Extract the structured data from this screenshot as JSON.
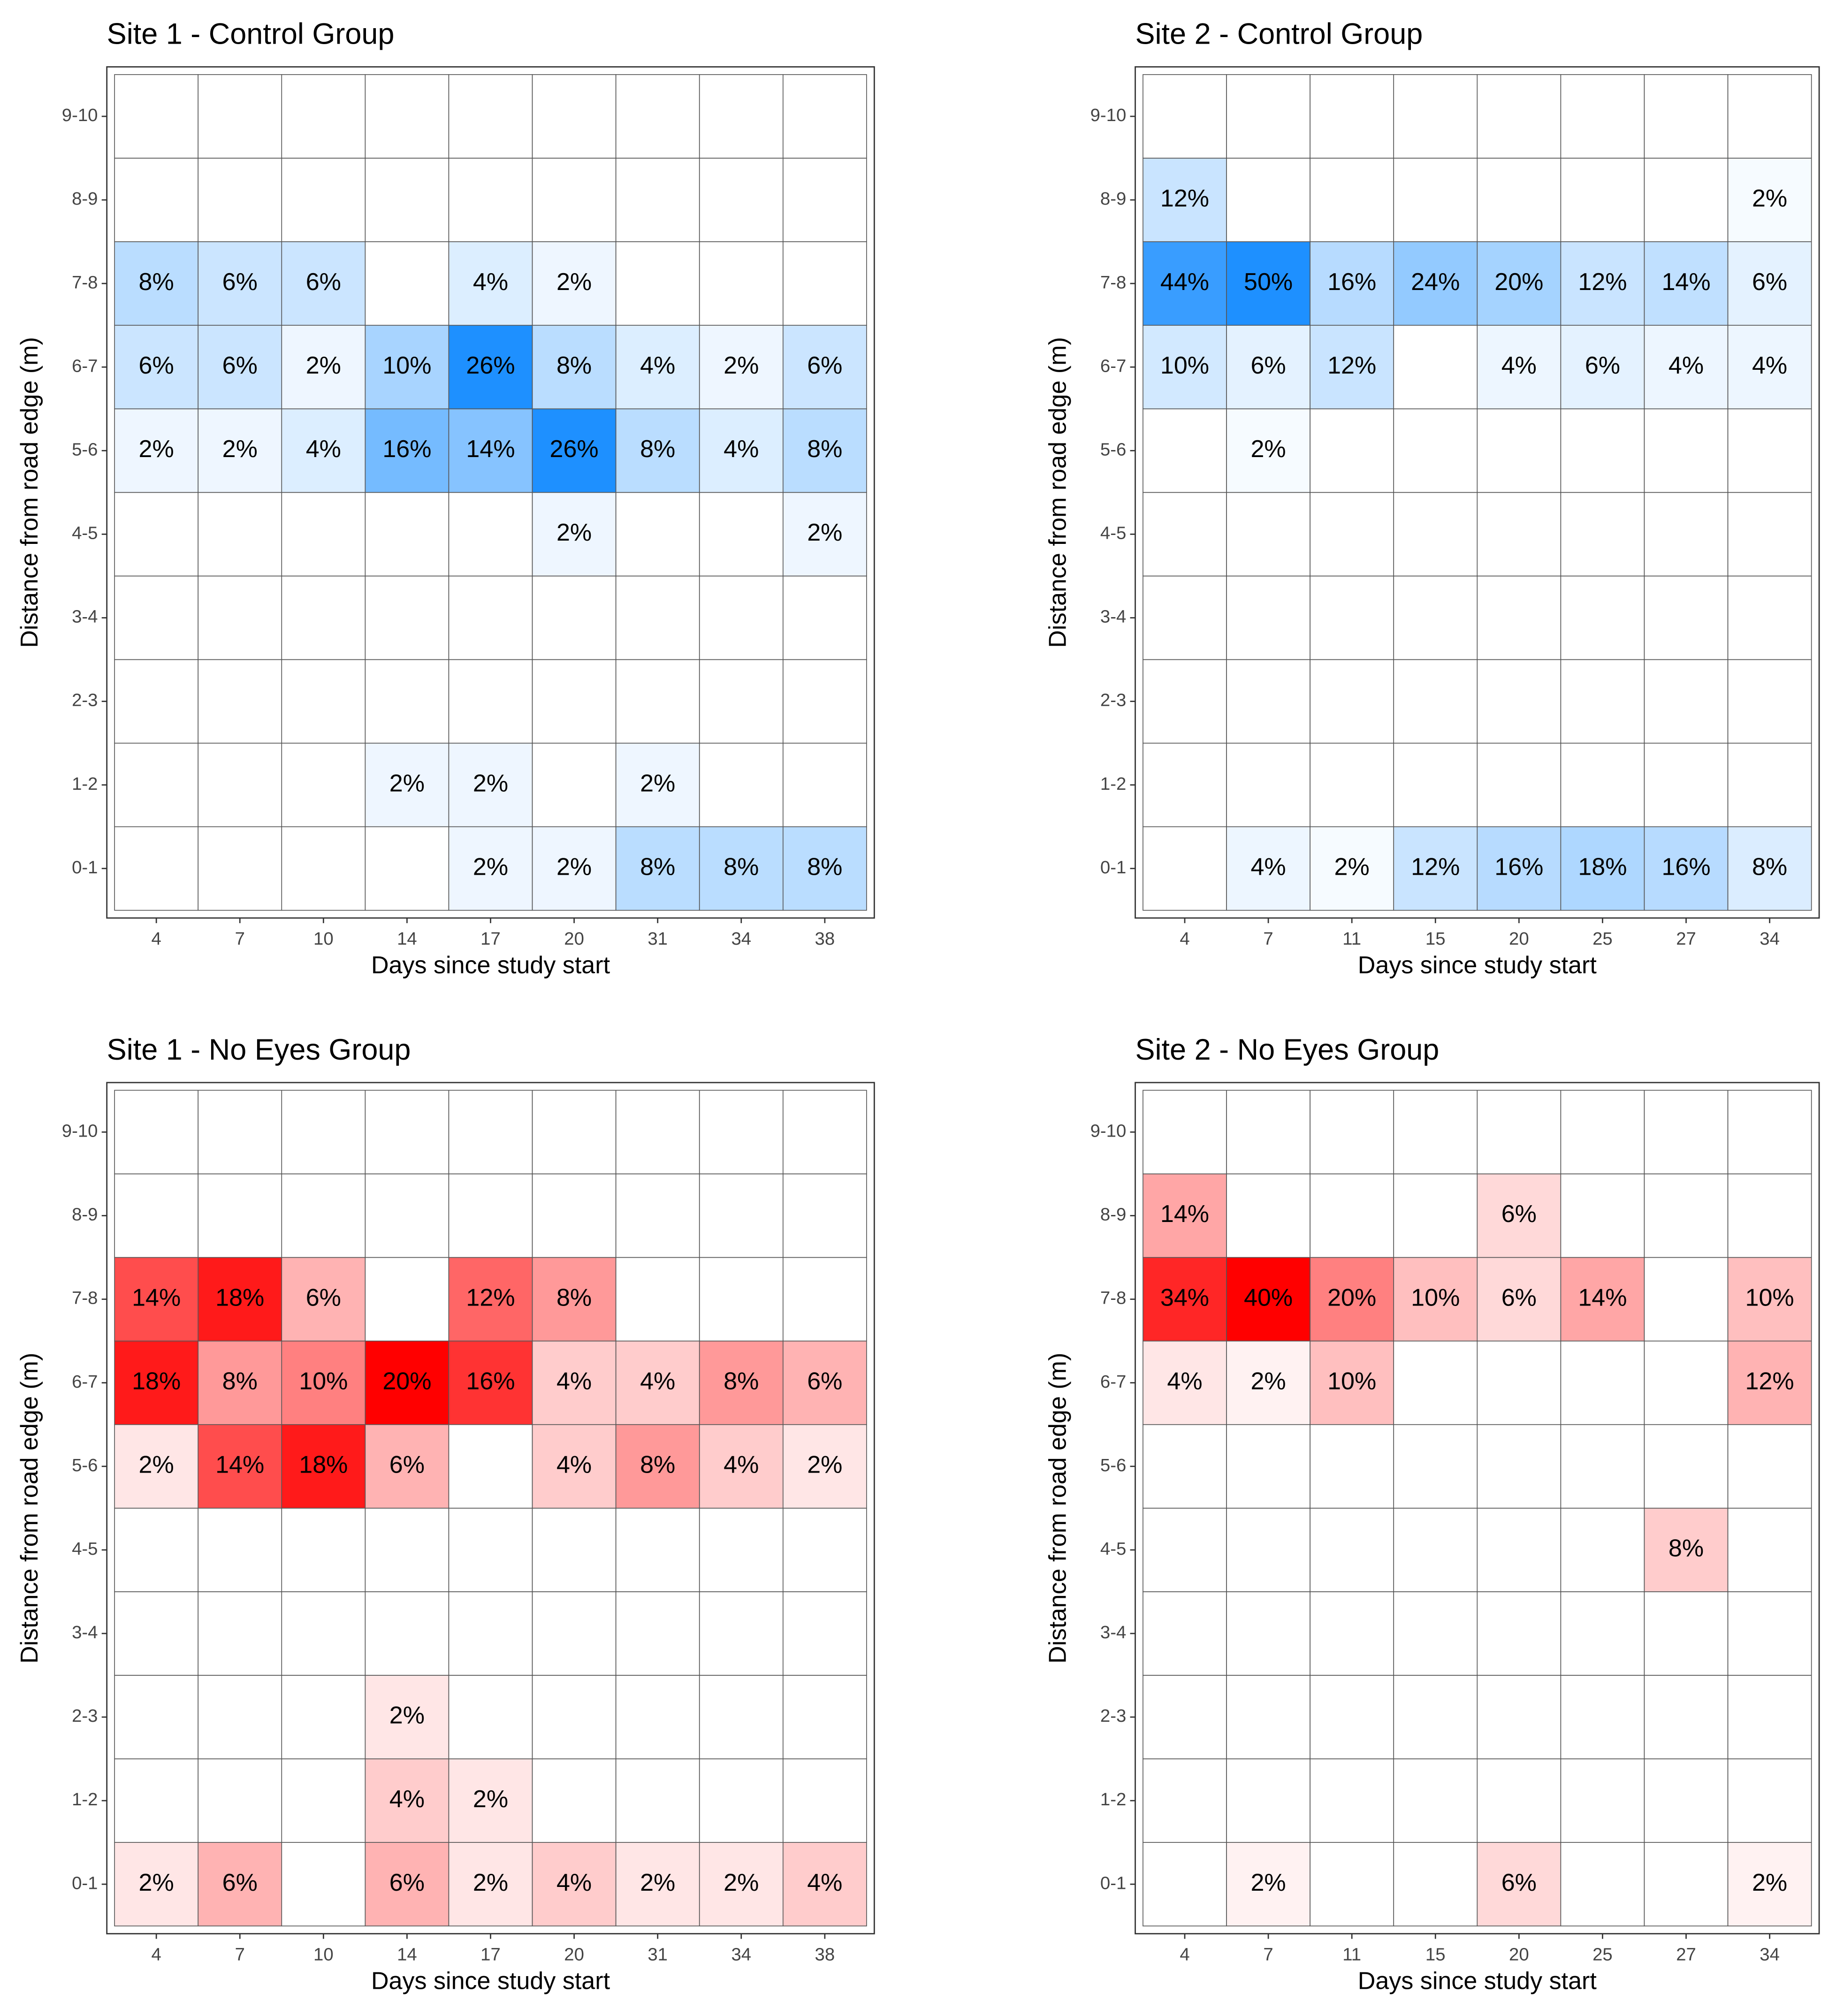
{
  "chart_data": [
    {
      "type": "heatmap",
      "title": "Site 1 - Control Group",
      "x_label": "Days since study start",
      "y_label": "Distance from road edge (m)",
      "color": "#1e90ff",
      "x": [
        "4",
        "7",
        "10",
        "14",
        "17",
        "20",
        "31",
        "34",
        "38"
      ],
      "y": [
        "0-1",
        "1-2",
        "2-3",
        "3-4",
        "4-5",
        "5-6",
        "6-7",
        "7-8",
        "8-9",
        "9-10"
      ],
      "values": [
        [
          null,
          null,
          null,
          null,
          2,
          2,
          8,
          8,
          8
        ],
        [
          null,
          null,
          null,
          2,
          2,
          null,
          2,
          null,
          null
        ],
        [
          null,
          null,
          null,
          null,
          null,
          null,
          null,
          null,
          null
        ],
        [
          null,
          null,
          null,
          null,
          null,
          null,
          null,
          null,
          null
        ],
        [
          null,
          null,
          null,
          null,
          null,
          2,
          null,
          null,
          2
        ],
        [
          2,
          2,
          4,
          16,
          14,
          26,
          8,
          4,
          8
        ],
        [
          6,
          6,
          2,
          10,
          26,
          8,
          4,
          2,
          6
        ],
        [
          8,
          6,
          6,
          null,
          4,
          2,
          null,
          null,
          null
        ],
        [
          null,
          null,
          null,
          null,
          null,
          null,
          null,
          null,
          null
        ],
        [
          null,
          null,
          null,
          null,
          null,
          null,
          null,
          null,
          null
        ]
      ],
      "value_labels": [
        [
          null,
          null,
          null,
          null,
          "2%",
          "2%",
          "8%",
          "8%",
          "8%"
        ],
        [
          null,
          null,
          null,
          "2%",
          "2%",
          null,
          "2%",
          null,
          null
        ],
        [
          null,
          null,
          null,
          null,
          null,
          null,
          null,
          null,
          null
        ],
        [
          null,
          null,
          null,
          null,
          null,
          null,
          null,
          null,
          null
        ],
        [
          null,
          null,
          null,
          null,
          null,
          "2%",
          null,
          null,
          "2%"
        ],
        [
          "2%",
          "2%",
          "4%",
          "16%",
          "14%",
          "26%",
          "8%",
          "4%",
          "8%"
        ],
        [
          "6%",
          "6%",
          "2%",
          "10%",
          "26%",
          "8%",
          "4%",
          "2%",
          "6%"
        ],
        [
          "8%",
          "6%",
          "6%",
          null,
          "4%",
          "2%",
          null,
          null,
          null
        ],
        [
          null,
          null,
          null,
          null,
          null,
          null,
          null,
          null,
          null
        ],
        [
          null,
          null,
          null,
          null,
          null,
          null,
          null,
          null,
          null
        ]
      ]
    },
    {
      "type": "heatmap",
      "title": "Site 2 - Control Group",
      "x_label": "Days since study start",
      "y_label": "Distance from road edge (m)",
      "color": "#1e90ff",
      "x": [
        "4",
        "7",
        "11",
        "15",
        "20",
        "25",
        "27",
        "34"
      ],
      "y": [
        "0-1",
        "1-2",
        "2-3",
        "3-4",
        "4-5",
        "5-6",
        "6-7",
        "7-8",
        "8-9",
        "9-10"
      ],
      "values": [
        [
          null,
          4,
          2,
          12,
          16,
          18,
          16,
          8
        ],
        [
          null,
          null,
          null,
          null,
          null,
          null,
          null,
          null
        ],
        [
          null,
          null,
          null,
          null,
          null,
          null,
          null,
          null
        ],
        [
          null,
          null,
          null,
          null,
          null,
          null,
          null,
          null
        ],
        [
          null,
          null,
          null,
          null,
          null,
          null,
          null,
          null
        ],
        [
          null,
          2,
          null,
          null,
          null,
          null,
          null,
          null
        ],
        [
          10,
          6,
          12,
          null,
          4,
          6,
          4,
          4
        ],
        [
          44,
          50,
          16,
          24,
          20,
          12,
          14,
          6
        ],
        [
          12,
          null,
          null,
          null,
          null,
          null,
          null,
          2
        ],
        [
          null,
          null,
          null,
          null,
          null,
          null,
          null,
          null
        ]
      ],
      "value_labels": [
        [
          null,
          "4%",
          "2%",
          "12%",
          "16%",
          "18%",
          "16%",
          "8%"
        ],
        [
          null,
          null,
          null,
          null,
          null,
          null,
          null,
          null
        ],
        [
          null,
          null,
          null,
          null,
          null,
          null,
          null,
          null
        ],
        [
          null,
          null,
          null,
          null,
          null,
          null,
          null,
          null
        ],
        [
          null,
          null,
          null,
          null,
          null,
          null,
          null,
          null
        ],
        [
          null,
          "2%",
          null,
          null,
          null,
          null,
          null,
          null
        ],
        [
          "10%",
          "6%",
          "12%",
          null,
          "4%",
          "6%",
          "4%",
          "4%"
        ],
        [
          "44%",
          "50%",
          "16%",
          "24%",
          "20%",
          "12%",
          "14%",
          "6%"
        ],
        [
          "12%",
          null,
          null,
          null,
          null,
          null,
          null,
          "2%"
        ],
        [
          null,
          null,
          null,
          null,
          null,
          null,
          null,
          null
        ]
      ]
    },
    {
      "type": "heatmap",
      "title": "Site 1 - No Eyes Group",
      "x_label": "Days since study start",
      "y_label": "Distance from road edge (m)",
      "color": "#ff0000",
      "x": [
        "4",
        "7",
        "10",
        "14",
        "17",
        "20",
        "31",
        "34",
        "38"
      ],
      "y": [
        "0-1",
        "1-2",
        "2-3",
        "3-4",
        "4-5",
        "5-6",
        "6-7",
        "7-8",
        "8-9",
        "9-10"
      ],
      "values": [
        [
          2,
          6,
          null,
          6,
          2,
          4,
          2,
          2,
          4
        ],
        [
          null,
          null,
          null,
          4,
          2,
          null,
          null,
          null,
          null
        ],
        [
          null,
          null,
          null,
          2,
          null,
          null,
          null,
          null,
          null
        ],
        [
          null,
          null,
          null,
          null,
          null,
          null,
          null,
          null,
          null
        ],
        [
          null,
          null,
          null,
          null,
          null,
          null,
          null,
          null,
          null
        ],
        [
          2,
          14,
          18,
          6,
          null,
          4,
          8,
          4,
          2
        ],
        [
          18,
          8,
          10,
          20,
          16,
          4,
          4,
          8,
          6
        ],
        [
          14,
          18,
          6,
          null,
          12,
          8,
          null,
          null,
          null
        ],
        [
          null,
          null,
          null,
          null,
          null,
          null,
          null,
          null,
          null
        ],
        [
          null,
          null,
          null,
          null,
          null,
          null,
          null,
          null,
          null
        ]
      ],
      "value_labels": [
        [
          "2%",
          "6%",
          null,
          "6%",
          "2%",
          "4%",
          "2%",
          "2%",
          "4%"
        ],
        [
          null,
          null,
          null,
          "4%",
          "2%",
          null,
          null,
          null,
          null
        ],
        [
          null,
          null,
          null,
          "2%",
          null,
          null,
          null,
          null,
          null
        ],
        [
          null,
          null,
          null,
          null,
          null,
          null,
          null,
          null,
          null
        ],
        [
          null,
          null,
          null,
          null,
          null,
          null,
          null,
          null,
          null
        ],
        [
          "2%",
          "14%",
          "18%",
          "6%",
          null,
          "4%",
          "8%",
          "4%",
          "2%"
        ],
        [
          "18%",
          "8%",
          "10%",
          "20%",
          "16%",
          "4%",
          "4%",
          "8%",
          "6%"
        ],
        [
          "14%",
          "18%",
          "6%",
          null,
          "12%",
          "8%",
          null,
          null,
          null
        ],
        [
          null,
          null,
          null,
          null,
          null,
          null,
          null,
          null,
          null
        ],
        [
          null,
          null,
          null,
          null,
          null,
          null,
          null,
          null,
          null
        ]
      ]
    },
    {
      "type": "heatmap",
      "title": "Site 2 - No Eyes Group",
      "x_label": "Days since study start",
      "y_label": "Distance from road edge (m)",
      "color": "#ff0000",
      "x": [
        "4",
        "7",
        "11",
        "15",
        "20",
        "25",
        "27",
        "34"
      ],
      "y": [
        "0-1",
        "1-2",
        "2-3",
        "3-4",
        "4-5",
        "5-6",
        "6-7",
        "7-8",
        "8-9",
        "9-10"
      ],
      "values": [
        [
          null,
          2,
          null,
          null,
          6,
          null,
          null,
          2
        ],
        [
          null,
          null,
          null,
          null,
          null,
          null,
          null,
          null
        ],
        [
          null,
          null,
          null,
          null,
          null,
          null,
          null,
          null
        ],
        [
          null,
          null,
          null,
          null,
          null,
          null,
          null,
          null
        ],
        [
          null,
          null,
          null,
          null,
          null,
          null,
          8,
          null
        ],
        [
          null,
          null,
          null,
          null,
          null,
          null,
          null,
          null
        ],
        [
          4,
          2,
          10,
          null,
          null,
          null,
          null,
          12
        ],
        [
          34,
          40,
          20,
          10,
          6,
          14,
          null,
          10
        ],
        [
          14,
          null,
          null,
          null,
          6,
          null,
          null,
          null
        ],
        [
          null,
          null,
          null,
          null,
          null,
          null,
          null,
          null
        ]
      ],
      "value_labels": [
        [
          null,
          "2%",
          null,
          null,
          "6%",
          null,
          null,
          "2%"
        ],
        [
          null,
          null,
          null,
          null,
          null,
          null,
          null,
          null
        ],
        [
          null,
          null,
          null,
          null,
          null,
          null,
          null,
          null
        ],
        [
          null,
          null,
          null,
          null,
          null,
          null,
          null,
          null
        ],
        [
          null,
          null,
          null,
          null,
          null,
          null,
          "8%",
          null
        ],
        [
          null,
          null,
          null,
          null,
          null,
          null,
          null,
          null
        ],
        [
          "4%",
          "2%",
          "10%",
          null,
          null,
          null,
          null,
          "12%"
        ],
        [
          "34%",
          "40%",
          "20%",
          "10%",
          "6%",
          "14%",
          null,
          "10%"
        ],
        [
          "14%",
          null,
          null,
          null,
          "6%",
          null,
          null,
          null
        ],
        [
          null,
          null,
          null,
          null,
          null,
          null,
          null,
          null
        ]
      ]
    }
  ]
}
